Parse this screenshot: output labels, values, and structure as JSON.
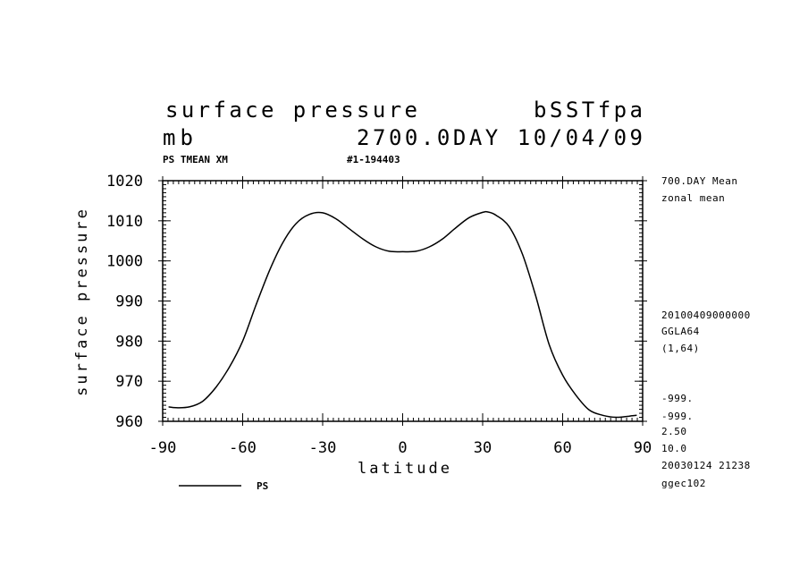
{
  "header": {
    "title": "surface pressure",
    "run_id": "bSSTfpa",
    "units": "mb",
    "date_line": "2700.0DAY 10/04/09",
    "subtitle_left": "PS TMEAN XM",
    "subtitle_mid": "#1-194403"
  },
  "side_info": {
    "line1": "700.DAY Mean",
    "line2": "zonal mean",
    "line3": "20100409000000",
    "line4": "GGLA64",
    "line5": "(1,64)",
    "line6": "-999.",
    "line7": "-999.",
    "line8": "2.50",
    "line9": "10.0",
    "line10": "20030124  21238",
    "line11": "ggec102"
  },
  "chart_data": {
    "type": "line",
    "xlabel": "latitude",
    "ylabel": "surface pressure",
    "xlim": [
      -90,
      90
    ],
    "ylim": [
      960,
      1020
    ],
    "xticks": [
      -90,
      -60,
      -30,
      0,
      30,
      60,
      90
    ],
    "xtick_labels": [
      "-90",
      "-60",
      "-30",
      "0",
      "30",
      "60",
      "90"
    ],
    "yticks": [
      960,
      970,
      980,
      990,
      1000,
      1010,
      1020
    ],
    "ytick_labels": [
      "960",
      "970",
      "980",
      "990",
      "1000",
      "1010",
      "1020"
    ],
    "grid": false,
    "legend_position": "bottom-left",
    "series": [
      {
        "name": "PS",
        "x": [
          -87.8,
          -85,
          -80,
          -75,
          -70,
          -65,
          -60,
          -55,
          -50,
          -45,
          -40,
          -35,
          -30,
          -25,
          -20,
          -15,
          -10,
          -5,
          0,
          5,
          10,
          15,
          20,
          25,
          30,
          32,
          35,
          40,
          45,
          50,
          55,
          60,
          65,
          70,
          75,
          80,
          85,
          87.8
        ],
        "values": [
          963.6,
          963.4,
          963.6,
          965,
          968.5,
          973.5,
          980,
          989,
          997.5,
          1004.5,
          1009.3,
          1011.6,
          1012,
          1010.5,
          1008,
          1005.5,
          1003.5,
          1002.4,
          1002.3,
          1002.4,
          1003.5,
          1005.5,
          1008.3,
          1010.8,
          1012.1,
          1012.2,
          1011.4,
          1008.5,
          1001.5,
          991,
          979,
          971.5,
          966.5,
          962.8,
          961.5,
          961,
          961.3,
          961.5
        ]
      }
    ]
  }
}
